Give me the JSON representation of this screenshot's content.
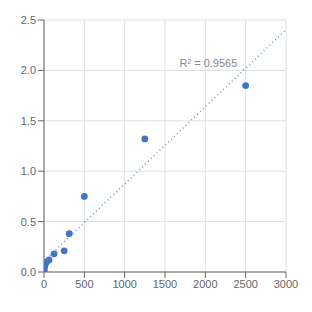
{
  "chart_data": {
    "type": "scatter",
    "series": [
      {
        "type": "scatter",
        "color": "#4472c4",
        "x": [
          4,
          8,
          16,
          31,
          63,
          125,
          250,
          313,
          500,
          1250,
          2500
        ],
        "values": [
          0.02,
          0.05,
          0.08,
          0.1,
          0.12,
          0.18,
          0.21,
          0.38,
          0.75,
          1.32,
          1.85
        ]
      },
      {
        "type": "line",
        "color": "#5B9BD5",
        "line_style": "dotted",
        "x": [
          0,
          3000
        ],
        "values": [
          0.1079,
          2.4043
        ]
      }
    ],
    "annotations": [
      {
        "text": "R² = 0.9565",
        "x": 1680,
        "y": 2.0
      }
    ],
    "xlim": [
      0,
      3000
    ],
    "ylim": [
      0,
      2.5
    ],
    "xticks": [
      0,
      500,
      1000,
      1500,
      2000,
      2500,
      3000
    ],
    "yticks": [
      {
        "value": 0,
        "label": "0.0"
      },
      0.5,
      {
        "value": 1.0,
        "label": "1.0"
      },
      1.5,
      {
        "value": 2.0,
        "label": "2.0"
      },
      2.5
    ],
    "grid": true
  }
}
